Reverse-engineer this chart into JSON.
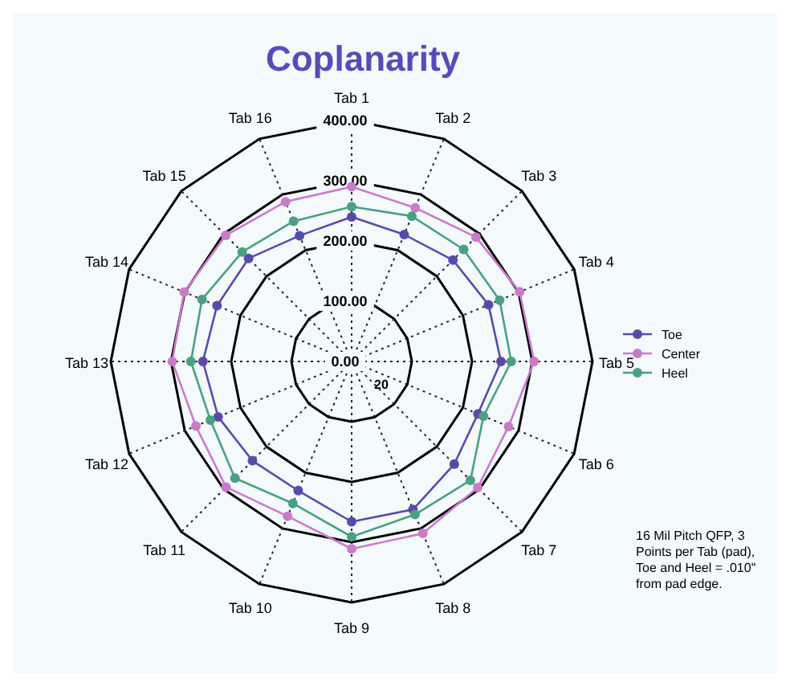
{
  "chart_data": {
    "type": "radar",
    "title": "Coplanarity",
    "categories": [
      "Tab 1",
      "Tab 2",
      "Tab 3",
      "Tab 4",
      "Tab 5",
      "Tab 6",
      "Tab 7",
      "Tab 8",
      "Tab 9",
      "Tab 10",
      "Tab 11",
      "Tab 12",
      "Tab 13",
      "Tab 14",
      "Tab 15",
      "Tab 16"
    ],
    "series": [
      {
        "name": "Toe",
        "color": "#5a4aa8",
        "values": [
          240,
          228,
          238,
          246,
          248,
          227,
          241,
          266,
          266,
          232,
          233,
          240,
          247,
          242,
          242,
          226
        ]
      },
      {
        "name": "Center",
        "color": "#c87cc8",
        "values": [
          290,
          276,
          292,
          302,
          303,
          282,
          296,
          309,
          311,
          278,
          295,
          280,
          298,
          301,
          296,
          287
        ]
      },
      {
        "name": "Heel",
        "color": "#4aa080",
        "values": [
          257,
          261,
          263,
          266,
          265,
          237,
          279,
          275,
          291,
          255,
          274,
          254,
          267,
          269,
          257,
          252
        ]
      }
    ],
    "ylim": [
      0,
      400
    ],
    "yticks": [
      {
        "value": 0,
        "label": "0.00"
      },
      {
        "value": 100,
        "label": "100.00"
      },
      {
        "value": 200,
        "label": "200.00"
      },
      {
        "value": 300,
        "label": "300.00"
      },
      {
        "value": 400,
        "label": "400.00"
      }
    ],
    "grid": true,
    "legend": "right",
    "marker": "circle",
    "line_style": "solid",
    "annotations": [
      "20",
      "16 Mil Pitch QFP, 3 Points per Tab (pad), Toe and Heel = .010\" from pad edge."
    ]
  }
}
